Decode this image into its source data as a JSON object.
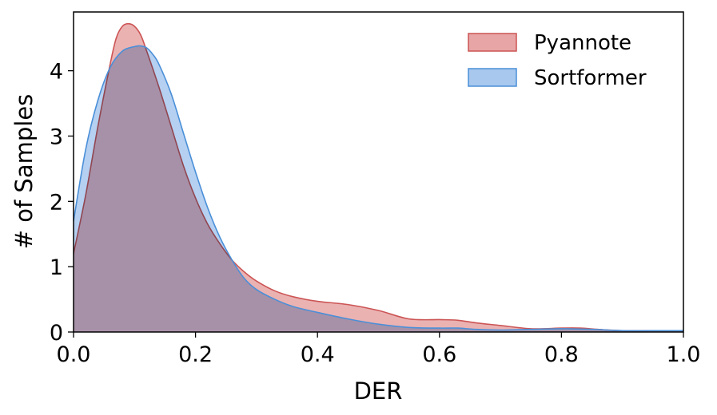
{
  "chart_data": {
    "type": "area",
    "xlabel": "DER",
    "ylabel": "# of Samples",
    "xlim": [
      0,
      1
    ],
    "ylim": [
      0,
      4.9
    ],
    "xticks": [
      "0.0",
      "0.2",
      "0.4",
      "0.6",
      "0.8",
      "1.0"
    ],
    "yticks": [
      "0",
      "1",
      "2",
      "3",
      "4"
    ],
    "grid": false,
    "legend_position": "top-right",
    "series": [
      {
        "name": "Pyannote",
        "fill": "#e8a5a5",
        "stroke": "#cc5555",
        "x": [
          0.0,
          0.02,
          0.04,
          0.06,
          0.07,
          0.08,
          0.09,
          0.1,
          0.11,
          0.12,
          0.14,
          0.16,
          0.18,
          0.2,
          0.22,
          0.24,
          0.26,
          0.28,
          0.3,
          0.33,
          0.36,
          0.4,
          0.45,
          0.5,
          0.55,
          0.6,
          0.63,
          0.66,
          0.7,
          0.75,
          0.8,
          0.83,
          0.86,
          0.9,
          0.95,
          1.0
        ],
        "y": [
          1.2,
          2.1,
          3.15,
          4.1,
          4.5,
          4.68,
          4.72,
          4.68,
          4.55,
          4.3,
          3.75,
          3.15,
          2.55,
          2.05,
          1.65,
          1.35,
          1.1,
          0.92,
          0.78,
          0.63,
          0.54,
          0.47,
          0.42,
          0.33,
          0.2,
          0.19,
          0.18,
          0.14,
          0.1,
          0.05,
          0.06,
          0.06,
          0.04,
          0.02,
          0.02,
          0.02
        ]
      },
      {
        "name": "Sortformer",
        "fill": "#a8c8ee",
        "stroke": "#4a8fd8",
        "x": [
          0.0,
          0.02,
          0.04,
          0.06,
          0.08,
          0.1,
          0.11,
          0.12,
          0.13,
          0.14,
          0.16,
          0.18,
          0.2,
          0.22,
          0.24,
          0.26,
          0.28,
          0.3,
          0.33,
          0.36,
          0.4,
          0.45,
          0.5,
          0.55,
          0.6,
          0.63,
          0.66,
          0.7,
          0.75,
          0.8,
          0.85,
          0.9,
          0.95,
          1.0
        ],
        "y": [
          1.7,
          2.8,
          3.55,
          4.05,
          4.3,
          4.37,
          4.38,
          4.35,
          4.25,
          4.1,
          3.65,
          3.05,
          2.45,
          1.9,
          1.45,
          1.1,
          0.82,
          0.65,
          0.5,
          0.39,
          0.3,
          0.2,
          0.12,
          0.07,
          0.06,
          0.06,
          0.04,
          0.03,
          0.04,
          0.05,
          0.04,
          0.02,
          0.02,
          0.02
        ]
      }
    ]
  }
}
